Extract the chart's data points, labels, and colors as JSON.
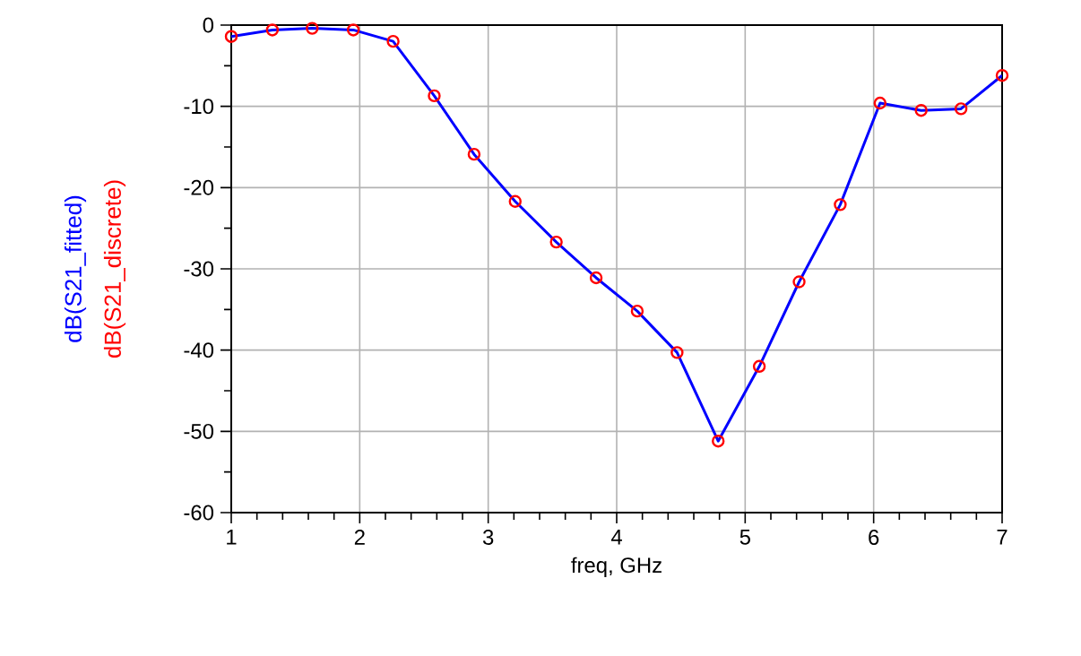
{
  "chart_data": {
    "type": "line",
    "xlabel": "freq, GHz",
    "x": [
      1,
      1.32,
      1.63,
      1.95,
      2.26,
      2.58,
      2.89,
      3.21,
      3.53,
      3.84,
      4.16,
      4.47,
      4.79,
      5.11,
      5.42,
      5.74,
      6.05,
      6.37,
      6.68,
      7
    ],
    "series": [
      {
        "name": "dB(S21_fitted)",
        "color": "#0000ff",
        "marker": "none",
        "values": [
          -1.4,
          -0.6,
          -0.4,
          -0.6,
          -2.0,
          -8.7,
          -15.9,
          -21.7,
          -26.7,
          -31.1,
          -35.2,
          -40.3,
          -51.2,
          -42.0,
          -31.6,
          -22.1,
          -9.6,
          -10.5,
          -10.3,
          -6.2
        ]
      },
      {
        "name": "dB(S21_discrete)",
        "color": "#ff0000",
        "type": "scatter",
        "marker": "circle",
        "values": [
          -1.4,
          -0.6,
          -0.4,
          -0.6,
          -2.0,
          -8.7,
          -15.9,
          -21.7,
          -26.7,
          -31.1,
          -35.2,
          -40.3,
          -51.2,
          -42.0,
          -31.6,
          -22.1,
          -9.6,
          -10.5,
          -10.3,
          -6.2
        ]
      }
    ],
    "xlim": [
      1,
      7
    ],
    "ylim": [
      -60,
      0
    ],
    "xticks": [
      1,
      2,
      3,
      4,
      5,
      6,
      7
    ],
    "yticks": [
      -60,
      -50,
      -40,
      -30,
      -20,
      -10,
      0
    ],
    "grid": true
  }
}
